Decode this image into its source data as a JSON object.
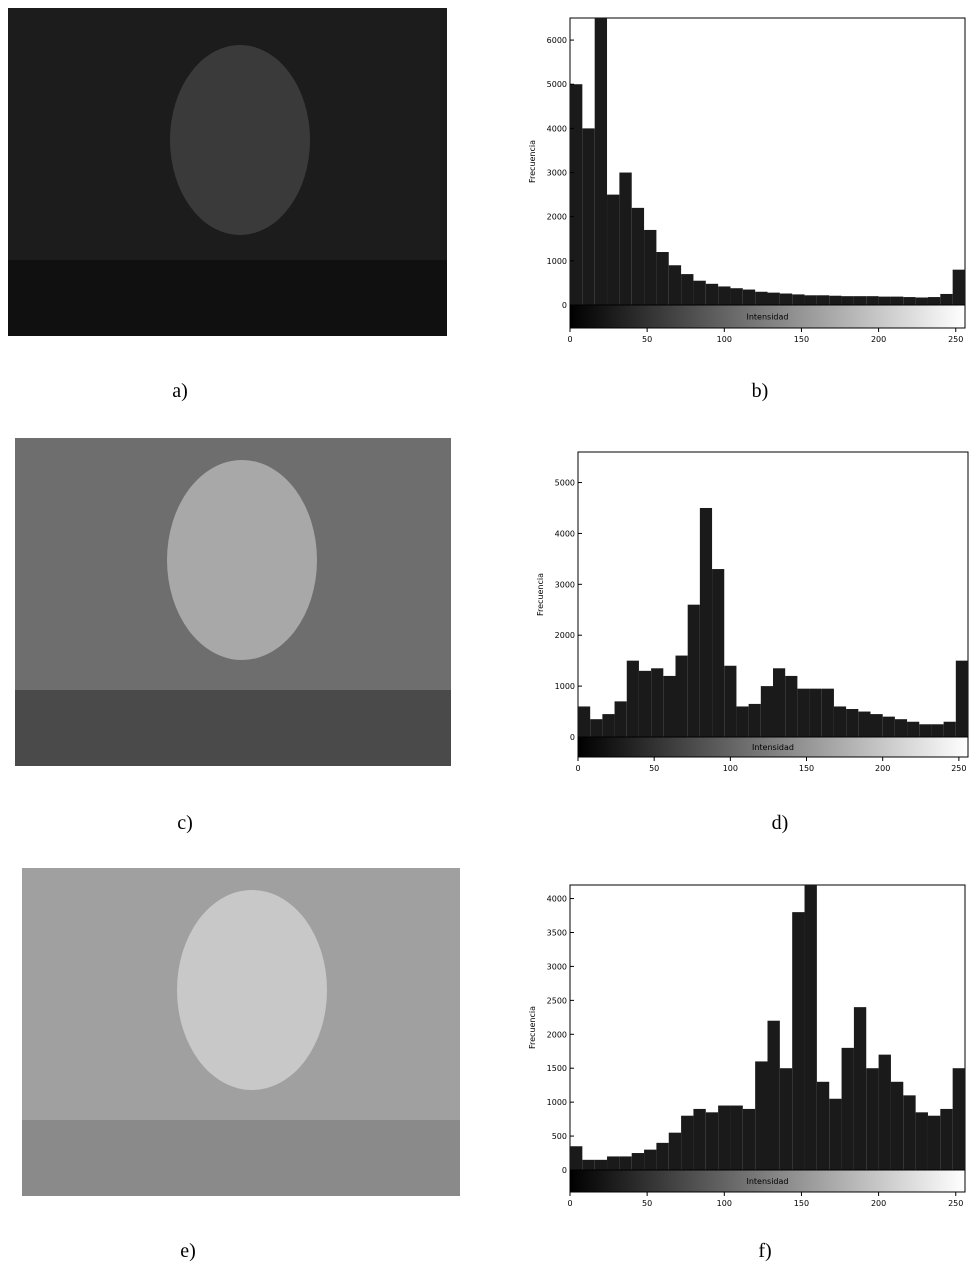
{
  "image_panels": [
    {
      "label": "a)"
    },
    {
      "label": "c)"
    },
    {
      "label": "e)"
    }
  ],
  "chart_data": [
    {
      "type": "histogram",
      "label": "b)",
      "ylabel": "Frecuencia",
      "colorbar_label": "Intensidad",
      "color": "#1a1a1a",
      "bins": [
        0,
        8,
        16,
        24,
        32,
        40,
        48,
        56,
        64,
        72,
        80,
        88,
        96,
        104,
        112,
        120,
        128,
        136,
        144,
        152,
        160,
        168,
        176,
        184,
        192,
        200,
        208,
        216,
        224,
        232,
        240,
        248,
        256
      ],
      "values": [
        5000,
        4000,
        6500,
        2500,
        3000,
        2200,
        1700,
        1200,
        900,
        700,
        550,
        480,
        420,
        380,
        350,
        300,
        280,
        260,
        240,
        220,
        220,
        210,
        200,
        200,
        200,
        190,
        190,
        180,
        170,
        180,
        250,
        800
      ],
      "xlim": [
        0,
        256
      ],
      "xticks": [
        0,
        50,
        100,
        150,
        200,
        250
      ],
      "ylim": [
        0,
        6500
      ],
      "yticks": [
        0,
        1000,
        2000,
        3000,
        4000,
        5000,
        6000
      ]
    },
    {
      "type": "histogram",
      "label": "d)",
      "ylabel": "Frecuencia",
      "colorbar_label": "Intensidad",
      "color": "#1a1a1a",
      "bins": [
        0,
        8,
        16,
        24,
        32,
        40,
        48,
        56,
        64,
        72,
        80,
        88,
        96,
        104,
        112,
        120,
        128,
        136,
        144,
        152,
        160,
        168,
        176,
        184,
        192,
        200,
        208,
        216,
        224,
        232,
        240,
        248,
        256
      ],
      "values": [
        600,
        350,
        450,
        700,
        1500,
        1300,
        1350,
        1200,
        1600,
        2600,
        4500,
        3300,
        1400,
        600,
        650,
        1000,
        1350,
        1200,
        950,
        950,
        950,
        600,
        550,
        500,
        450,
        400,
        350,
        300,
        250,
        250,
        300,
        1500
      ],
      "xlim": [
        0,
        256
      ],
      "xticks": [
        0,
        50,
        100,
        150,
        200,
        250
      ],
      "ylim": [
        0,
        5600
      ],
      "yticks": [
        0,
        1000,
        2000,
        3000,
        4000,
        5000
      ]
    },
    {
      "type": "histogram",
      "label": "f)",
      "ylabel": "Frecuencia",
      "colorbar_label": "Intensidad",
      "color": "#1a1a1a",
      "bins": [
        0,
        8,
        16,
        24,
        32,
        40,
        48,
        56,
        64,
        72,
        80,
        88,
        96,
        104,
        112,
        120,
        128,
        136,
        144,
        152,
        160,
        168,
        176,
        184,
        192,
        200,
        208,
        216,
        224,
        232,
        240,
        248,
        256
      ],
      "values": [
        350,
        150,
        150,
        200,
        200,
        250,
        300,
        400,
        550,
        800,
        900,
        850,
        950,
        950,
        900,
        1600,
        2200,
        1500,
        3800,
        4200,
        1300,
        1050,
        1800,
        2400,
        1500,
        1700,
        1300,
        1100,
        850,
        800,
        900,
        1500
      ],
      "xlim": [
        0,
        256
      ],
      "xticks": [
        0,
        50,
        100,
        150,
        200,
        250
      ],
      "ylim": [
        0,
        4200
      ],
      "yticks": [
        0,
        500,
        1000,
        1500,
        2000,
        2500,
        3000,
        3500,
        4000
      ]
    }
  ]
}
